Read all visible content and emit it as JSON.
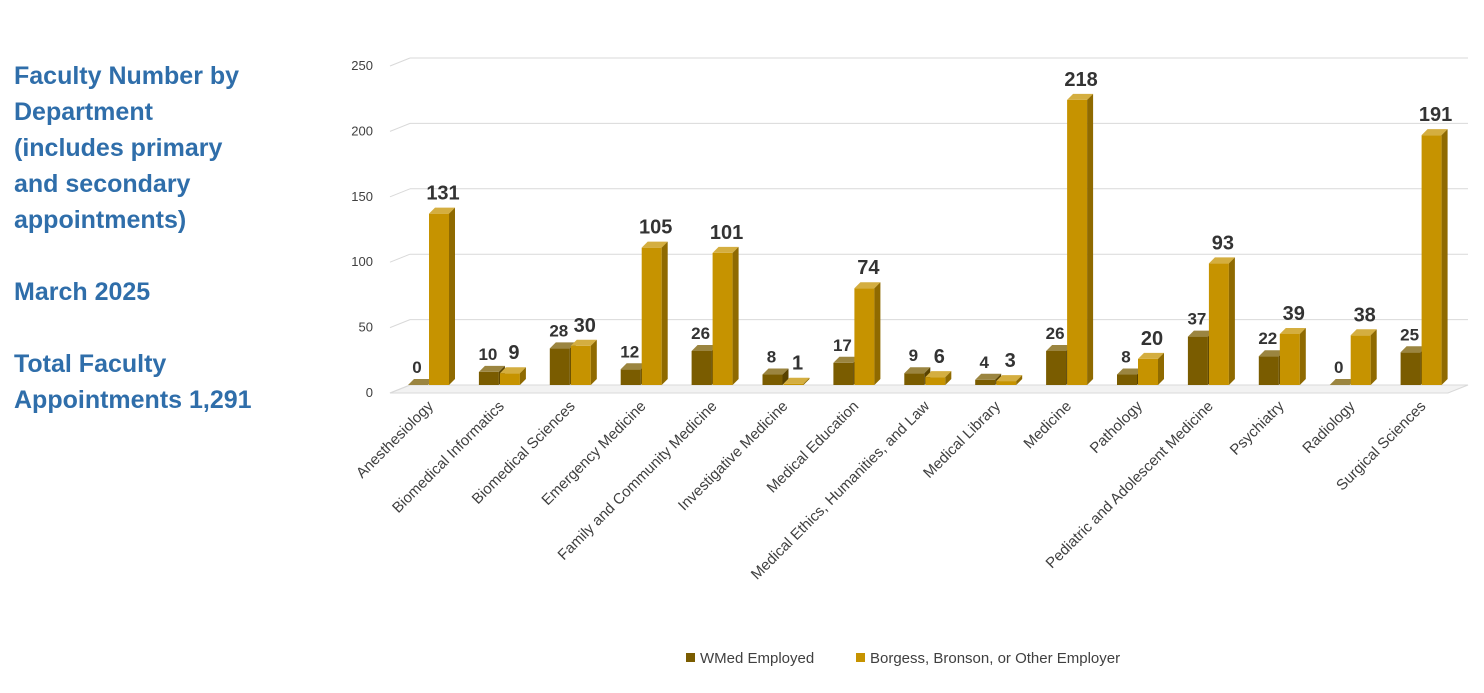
{
  "panel": {
    "title_lines": [
      "Faculty Number by",
      "Department",
      "(includes primary",
      "and secondary",
      "appointments)"
    ],
    "date": "March 2025",
    "total_lines": [
      "Total Faculty",
      "Appointments 1,291"
    ]
  },
  "colors": {
    "wmed": "#7a5c00",
    "other": "#c69300",
    "text_accent": "#2f6eaa"
  },
  "chart_data": {
    "type": "bar",
    "style": "3d-clustered-column",
    "categories": [
      "Anesthesiology",
      "Biomedical Informatics",
      "Biomedical Sciences",
      "Emergency Medicine",
      "Family and Community Medicine",
      "Investigative Medicine",
      "Medical Education",
      "Medical Ethics, Humanities, and Law",
      "Medical Library",
      "Medicine",
      "Pathology",
      "Pediatric and Adolescent Medicine",
      "Psychiatry",
      "Radiology",
      "Surgical Sciences"
    ],
    "series": [
      {
        "name": "WMed Employed",
        "values": [
          0,
          10,
          28,
          12,
          26,
          8,
          17,
          9,
          4,
          26,
          8,
          37,
          22,
          0,
          25
        ]
      },
      {
        "name": "Borgess, Bronson, or Other Employer",
        "values": [
          131,
          9,
          30,
          105,
          101,
          1,
          74,
          6,
          3,
          218,
          20,
          93,
          39,
          38,
          191
        ]
      }
    ],
    "ylim": [
      0,
      250
    ],
    "yticks": [
      0,
      50,
      100,
      150,
      200,
      250
    ],
    "grid": true,
    "legend": "bottom"
  }
}
